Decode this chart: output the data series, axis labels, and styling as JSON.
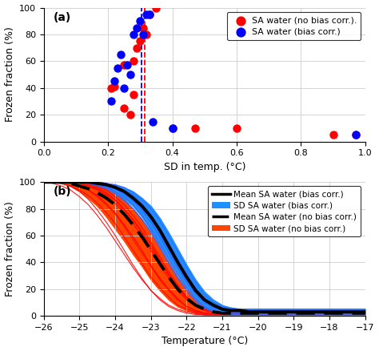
{
  "panel_a": {
    "red_x": [
      0.21,
      0.22,
      0.25,
      0.25,
      0.27,
      0.28,
      0.28,
      0.29,
      0.3,
      0.31,
      0.32,
      0.33,
      0.35,
      0.4,
      0.47,
      0.6,
      0.9,
      0.97
    ],
    "red_y": [
      40,
      41,
      25,
      57,
      20,
      35,
      60,
      70,
      75,
      85,
      80,
      95,
      100,
      10,
      10,
      10,
      5,
      5
    ],
    "blue_x": [
      0.21,
      0.22,
      0.23,
      0.24,
      0.25,
      0.26,
      0.27,
      0.28,
      0.29,
      0.3,
      0.31,
      0.32,
      0.33,
      0.34,
      0.4,
      0.97
    ],
    "blue_y": [
      30,
      45,
      55,
      65,
      40,
      57,
      50,
      80,
      85,
      90,
      80,
      95,
      95,
      15,
      10,
      5
    ],
    "red_vline": 0.315,
    "blue_vline": 0.305,
    "xlim": [
      0,
      1.0
    ],
    "ylim": [
      0,
      100
    ],
    "xlabel": "SD in temp. (°C)",
    "ylabel": "Frozen fraction (%)",
    "label_a": "(a)",
    "legend_red": "SA water (no bias corr.).",
    "legend_blue": "SA water (bias corr.)"
  },
  "panel_b": {
    "temp": [
      -26.0,
      -25.75,
      -25.5,
      -25.25,
      -25.0,
      -24.75,
      -24.5,
      -24.25,
      -24.0,
      -23.75,
      -23.5,
      -23.25,
      -23.0,
      -22.75,
      -22.5,
      -22.25,
      -22.0,
      -21.75,
      -21.5,
      -21.25,
      -21.0,
      -20.75,
      -20.5,
      -20.25,
      -20.0,
      -19.75,
      -19.5,
      -19.25,
      -19.0,
      -18.75,
      -18.5,
      -18.25,
      -18.0,
      -17.75,
      -17.5,
      -17.25,
      -17.0
    ],
    "mean_blue": [
      100,
      100,
      100,
      100,
      100,
      100,
      99,
      98,
      96,
      93,
      88,
      82,
      74,
      64,
      52,
      40,
      29,
      19,
      12,
      8,
      5,
      4,
      4,
      3,
      3,
      3,
      3,
      3,
      3,
      3,
      3,
      3,
      3,
      3,
      3,
      3,
      3
    ],
    "sd_blue_upper": [
      100,
      100,
      100,
      100,
      100,
      100,
      100,
      99,
      98,
      96,
      93,
      88,
      82,
      73,
      62,
      50,
      38,
      27,
      18,
      12,
      8,
      6,
      5,
      5,
      5,
      5,
      5,
      5,
      5,
      5,
      5,
      5,
      5,
      5,
      5,
      5,
      5
    ],
    "sd_blue_lower": [
      100,
      100,
      100,
      100,
      100,
      99,
      98,
      96,
      92,
      88,
      82,
      74,
      64,
      53,
      42,
      31,
      21,
      13,
      7,
      4,
      2,
      2,
      2,
      2,
      2,
      2,
      2,
      2,
      2,
      2,
      2,
      2,
      2,
      2,
      2,
      2,
      2
    ],
    "mean_dashed": [
      100,
      100,
      100,
      99,
      97,
      95,
      92,
      88,
      83,
      76,
      68,
      59,
      49,
      39,
      29,
      20,
      13,
      8,
      5,
      3,
      2,
      2,
      2,
      2,
      2,
      2,
      2,
      2,
      2,
      2,
      2,
      2,
      2,
      2,
      2,
      2,
      2
    ],
    "sd_red_upper": [
      100,
      100,
      100,
      100,
      100,
      99,
      98,
      96,
      92,
      87,
      80,
      72,
      62,
      51,
      40,
      29,
      20,
      13,
      8,
      5,
      4,
      3,
      3,
      3,
      3,
      3,
      3,
      3,
      3,
      3,
      3,
      3,
      3,
      3,
      3,
      3,
      3
    ],
    "sd_red_lower": [
      100,
      100,
      99,
      97,
      93,
      88,
      82,
      74,
      65,
      56,
      46,
      37,
      27,
      19,
      12,
      7,
      4,
      2,
      1,
      1,
      1,
      1,
      1,
      1,
      1,
      1,
      1,
      1,
      1,
      1,
      1,
      1,
      1,
      1,
      1,
      1,
      1
    ],
    "blue_individual_lines": [
      [
        100,
        100,
        100,
        100,
        100,
        100,
        99,
        98,
        95,
        91,
        86,
        79,
        70,
        59,
        47,
        36,
        25,
        16,
        10,
        6,
        4,
        3,
        3,
        3,
        3,
        3,
        3,
        3,
        3,
        3,
        3,
        3,
        3,
        3,
        3,
        3,
        3
      ],
      [
        100,
        100,
        100,
        100,
        100,
        100,
        100,
        99,
        97,
        94,
        90,
        84,
        76,
        66,
        54,
        42,
        31,
        21,
        13,
        8,
        5,
        4,
        4,
        4,
        4,
        4,
        4,
        4,
        4,
        4,
        4,
        4,
        4,
        4,
        4,
        4,
        4
      ],
      [
        100,
        100,
        100,
        100,
        100,
        99,
        98,
        96,
        93,
        89,
        83,
        75,
        65,
        54,
        42,
        31,
        21,
        13,
        7,
        4,
        2,
        2,
        2,
        2,
        2,
        2,
        2,
        2,
        2,
        2,
        2,
        2,
        2,
        2,
        2,
        2,
        2
      ],
      [
        100,
        100,
        100,
        100,
        100,
        100,
        100,
        99,
        98,
        96,
        92,
        87,
        80,
        71,
        60,
        48,
        36,
        25,
        16,
        10,
        7,
        6,
        5,
        5,
        5,
        5,
        5,
        5,
        5,
        5,
        5,
        5,
        5,
        5,
        5,
        5,
        5
      ],
      [
        100,
        100,
        100,
        100,
        100,
        99,
        97,
        95,
        91,
        86,
        80,
        72,
        62,
        51,
        39,
        28,
        19,
        11,
        6,
        3,
        2,
        1,
        1,
        1,
        1,
        1,
        1,
        1,
        1,
        1,
        1,
        1,
        1,
        1,
        1,
        1,
        1
      ],
      [
        100,
        100,
        100,
        100,
        100,
        100,
        99,
        97,
        95,
        91,
        86,
        79,
        70,
        60,
        48,
        36,
        26,
        17,
        10,
        6,
        4,
        3,
        3,
        3,
        3,
        3,
        3,
        3,
        3,
        3,
        3,
        3,
        3,
        3,
        3,
        3,
        3
      ],
      [
        100,
        100,
        100,
        100,
        100,
        99,
        98,
        96,
        92,
        87,
        80,
        72,
        63,
        52,
        40,
        29,
        19,
        11,
        6,
        3,
        2,
        2,
        2,
        2,
        2,
        2,
        2,
        2,
        2,
        2,
        2,
        2,
        2,
        2,
        2,
        2,
        2
      ],
      [
        100,
        100,
        100,
        100,
        100,
        100,
        100,
        99,
        97,
        94,
        90,
        84,
        76,
        66,
        55,
        43,
        32,
        21,
        13,
        8,
        5,
        5,
        5,
        5,
        5,
        5,
        5,
        5,
        5,
        5,
        5,
        5,
        5,
        5,
        5,
        5,
        5
      ]
    ],
    "red_individual_lines": [
      [
        100,
        100,
        99,
        97,
        93,
        87,
        79,
        70,
        60,
        49,
        38,
        28,
        19,
        12,
        7,
        4,
        2,
        1,
        1,
        1,
        1,
        1,
        1,
        1,
        1,
        1,
        1,
        1,
        1,
        1,
        1,
        1,
        1,
        1,
        1,
        1,
        1
      ],
      [
        100,
        100,
        100,
        99,
        97,
        94,
        90,
        84,
        77,
        68,
        59,
        49,
        38,
        28,
        20,
        13,
        7,
        4,
        2,
        1,
        1,
        1,
        1,
        1,
        1,
        1,
        1,
        1,
        1,
        1,
        1,
        1,
        1,
        1,
        1,
        1,
        1
      ],
      [
        100,
        100,
        100,
        100,
        99,
        97,
        94,
        90,
        84,
        77,
        69,
        59,
        49,
        38,
        28,
        19,
        12,
        7,
        4,
        2,
        2,
        2,
        2,
        2,
        2,
        2,
        2,
        2,
        2,
        2,
        2,
        2,
        2,
        2,
        2,
        2,
        2
      ],
      [
        100,
        100,
        100,
        99,
        97,
        94,
        89,
        83,
        76,
        67,
        57,
        47,
        37,
        27,
        19,
        12,
        7,
        4,
        2,
        1,
        1,
        1,
        1,
        1,
        1,
        1,
        1,
        1,
        1,
        1,
        1,
        1,
        1,
        1,
        1,
        1,
        1
      ],
      [
        100,
        100,
        100,
        100,
        99,
        97,
        95,
        91,
        86,
        79,
        71,
        62,
        51,
        41,
        30,
        21,
        13,
        8,
        5,
        3,
        2,
        2,
        2,
        2,
        2,
        2,
        2,
        2,
        2,
        2,
        2,
        2,
        2,
        2,
        2,
        2,
        2
      ],
      [
        100,
        100,
        100,
        100,
        100,
        99,
        97,
        94,
        89,
        83,
        75,
        66,
        55,
        44,
        33,
        23,
        14,
        8,
        5,
        3,
        2,
        2,
        2,
        2,
        2,
        2,
        2,
        2,
        2,
        2,
        2,
        2,
        2,
        2,
        2,
        2,
        2
      ],
      [
        100,
        100,
        99,
        97,
        94,
        90,
        84,
        77,
        69,
        59,
        49,
        39,
        29,
        21,
        14,
        8,
        5,
        3,
        2,
        1,
        1,
        1,
        1,
        1,
        1,
        1,
        1,
        1,
        1,
        1,
        1,
        1,
        1,
        1,
        1,
        1,
        1
      ],
      [
        100,
        100,
        100,
        100,
        99,
        98,
        96,
        92,
        87,
        80,
        72,
        63,
        53,
        42,
        31,
        22,
        14,
        8,
        5,
        3,
        2,
        2,
        2,
        2,
        2,
        2,
        2,
        2,
        2,
        2,
        2,
        2,
        2,
        2,
        2,
        2,
        2
      ],
      [
        100,
        99,
        97,
        94,
        89,
        83,
        75,
        66,
        56,
        46,
        36,
        27,
        19,
        13,
        8,
        5,
        3,
        2,
        1,
        1,
        1,
        1,
        1,
        1,
        1,
        1,
        1,
        1,
        1,
        1,
        1,
        1,
        1,
        1,
        1,
        1,
        1
      ]
    ],
    "xlim": [
      -26,
      -17
    ],
    "ylim": [
      0,
      100
    ],
    "xlabel": "Temperature (°C)",
    "ylabel": "Frozen fraction (%)",
    "label_b": "(b)",
    "legend_mean_blue": "Mean SA water (bias corr.)",
    "legend_sd_blue": "SD SA water (bias corr.)",
    "legend_mean_dashed": "Mean SA water (no bias corr.)",
    "legend_sd_red": "SD SA water (no bias corr.)"
  },
  "bg_color": "#ffffff",
  "grid_color": "#cccccc"
}
